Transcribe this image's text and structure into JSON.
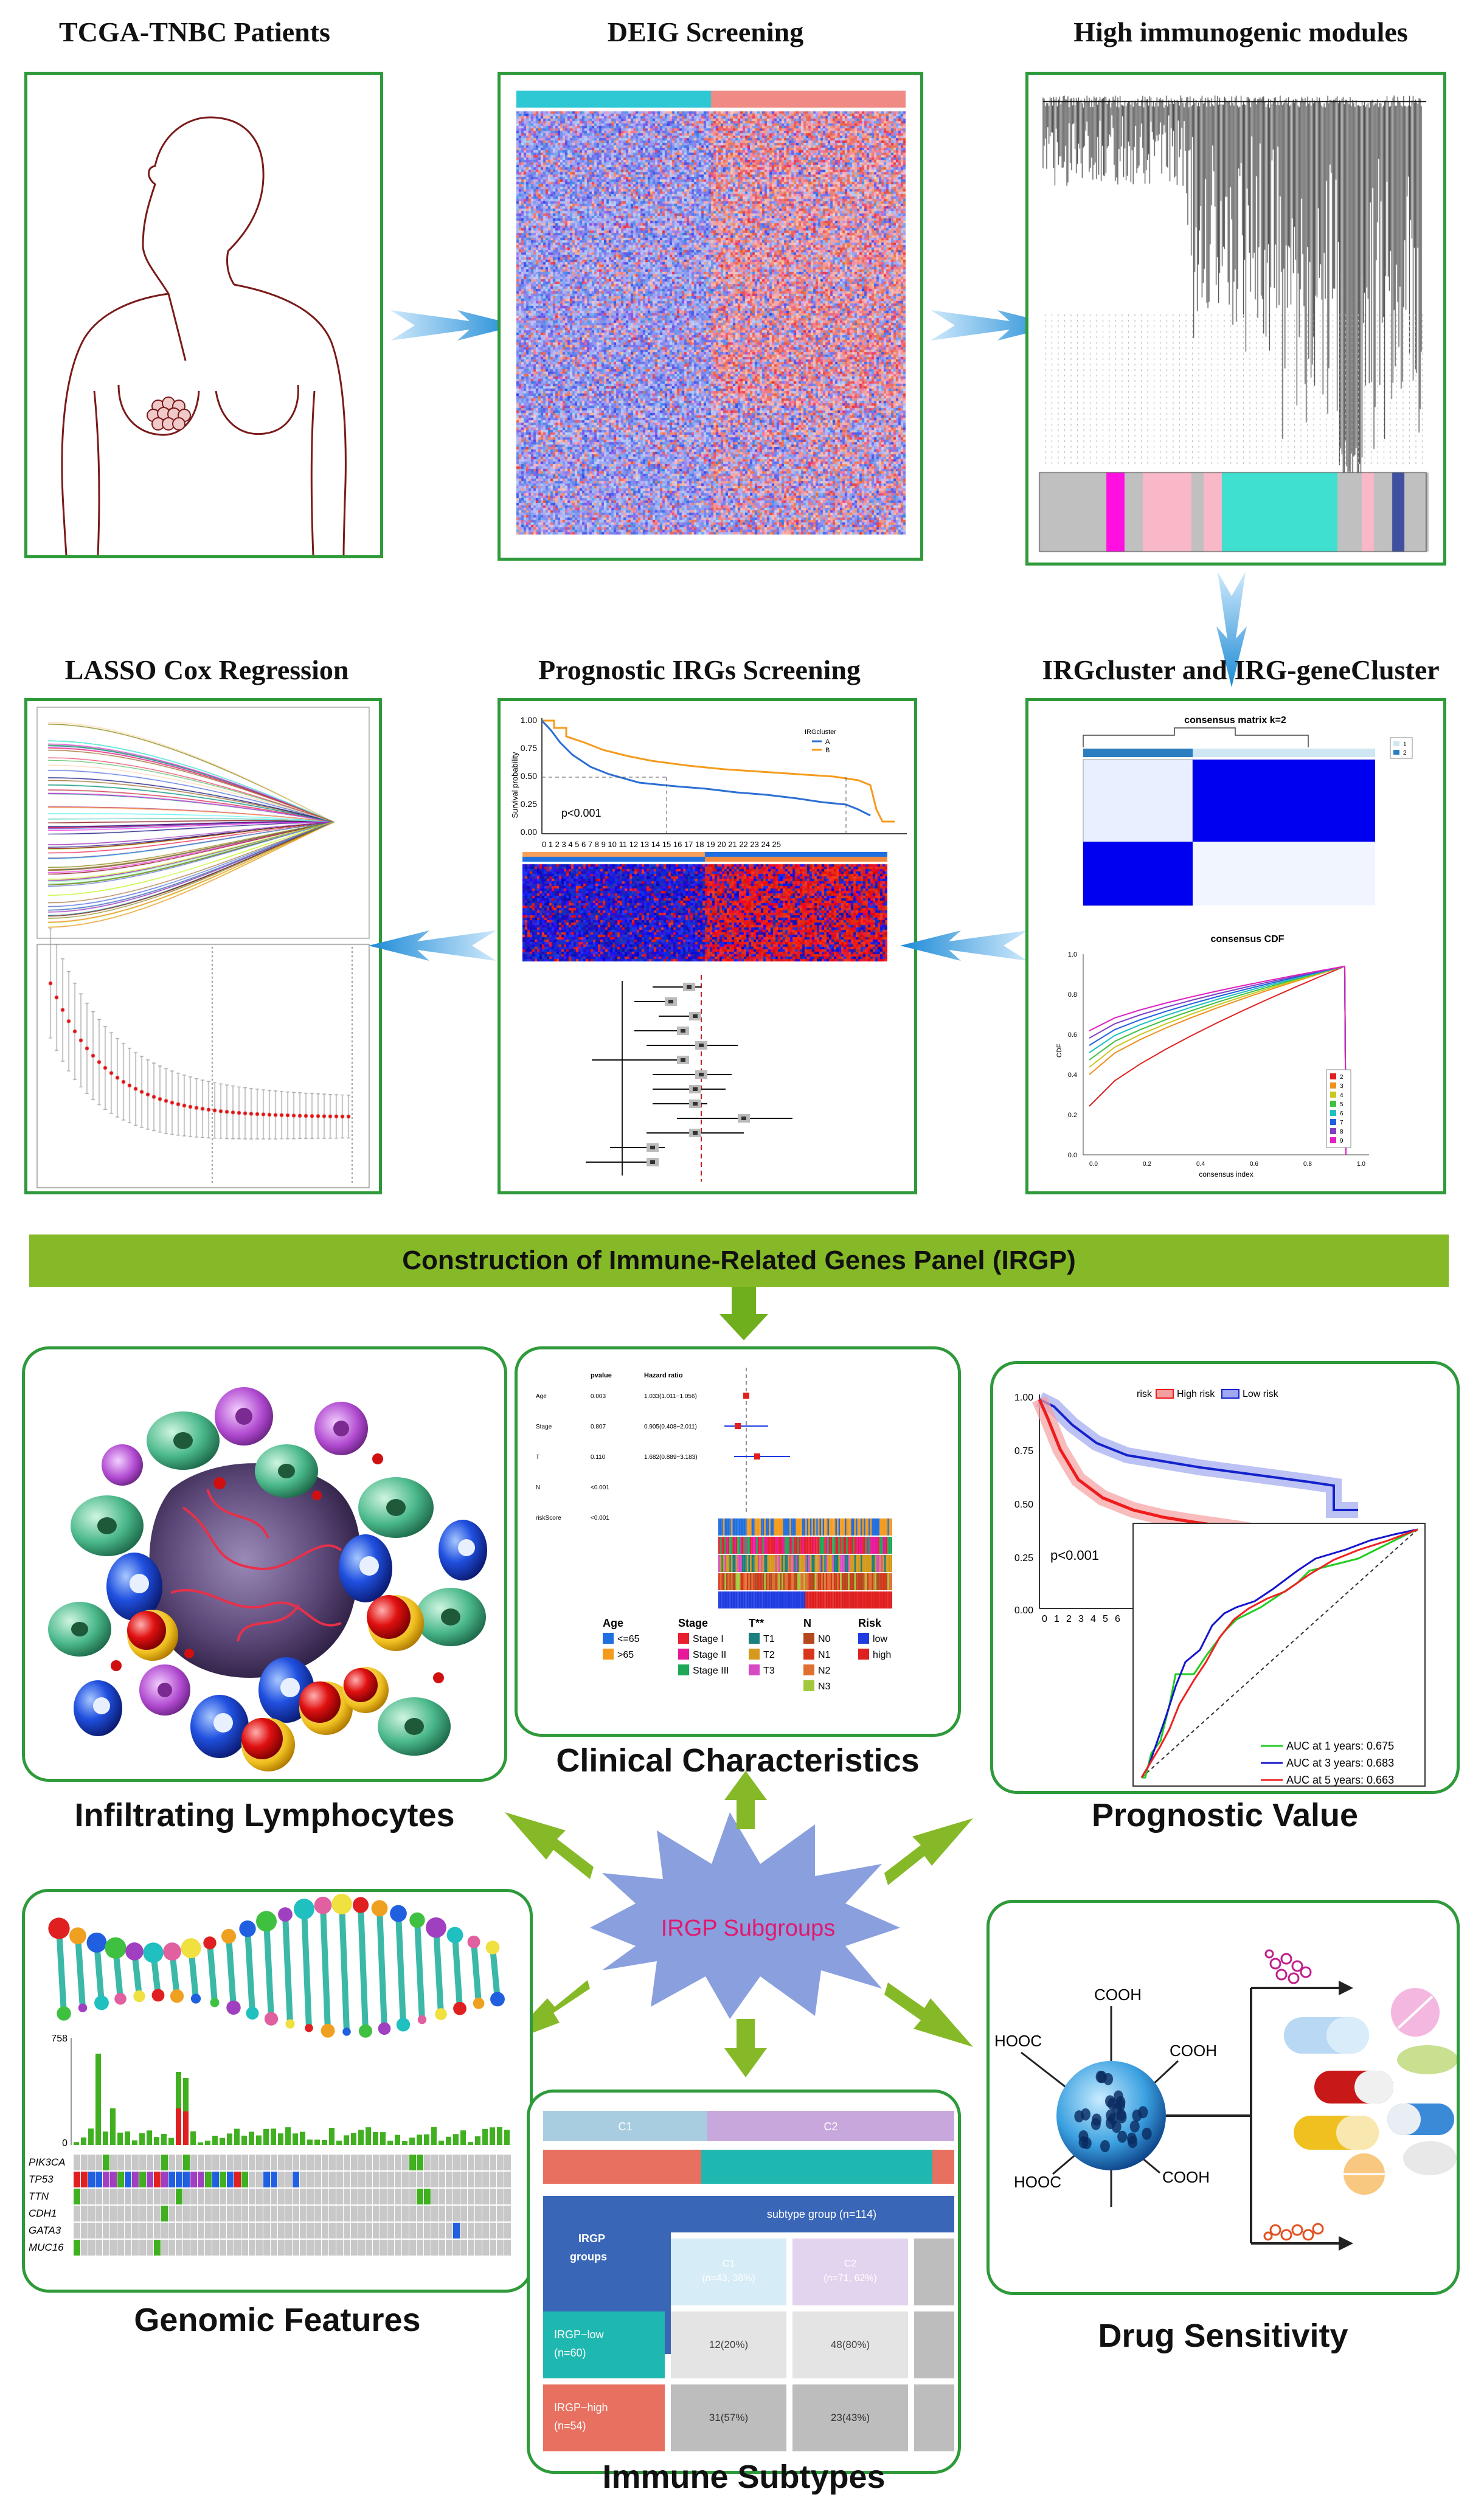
{
  "stages": {
    "tcga": "TCGA-TNBC Patients",
    "deig": "DEIG Screening",
    "modules": "High immunogenic modules",
    "lasso": "LASSO Cox Regression",
    "prognostic_irgs": "Prognostic IRGs Screening",
    "irgcluster": "IRGcluster and IRG-geneCluster"
  },
  "banner": "Construction of Immune-Related Genes Panel (IRGP)",
  "outcomes": {
    "infiltrating": "Infiltrating Lymphocytes",
    "clinical": "Clinical Characteristics",
    "prognostic": "Prognostic Value",
    "genomic": "Genomic Features",
    "immune": "Immune Subtypes",
    "drug": "Drug Sensitivity",
    "center": "IRGP Subgroups"
  },
  "km_small": {
    "pvalue": "p<0.001",
    "ylabel": "Survival probability",
    "legend_title": "IRGcluster",
    "legend_items": [
      "A",
      "B"
    ],
    "yticks": [
      "1.00",
      "0.75",
      "0.50",
      "0.25",
      "0.00"
    ],
    "xticks": "0 1 2 3 4 5 6 7 8 9 10 11 12 13 14 15 16 17 18 19 20 21 22 23 24 25"
  },
  "consensus": {
    "matrix_title": "consensus matrix k=2",
    "legend": [
      "1",
      "2"
    ],
    "cdf_title": "consensus CDF",
    "cdf_xlabel": "consensus index",
    "cdf_ylabel": "CDF",
    "cdf_yticks": [
      "1.0",
      "0.8",
      "0.6",
      "0.4",
      "0.2",
      "0.0"
    ],
    "cdf_xticks": [
      "0.0",
      "0.2",
      "0.4",
      "0.6",
      "0.8",
      "1.0"
    ],
    "cdf_legend": [
      "2",
      "3",
      "4",
      "5",
      "6",
      "7",
      "8",
      "9"
    ],
    "colors": {
      "c1": "#ffffff",
      "c2": "#0000ff"
    }
  },
  "clinical_table": {
    "headers": {
      "pvalue": "pvalue",
      "hr": "Hazard ratio"
    },
    "rows": [
      {
        "name": "Age",
        "p": "0.003",
        "hr": "1.033(1.011−1.056)"
      },
      {
        "name": "Stage",
        "p": "0.807",
        "hr": "0.905(0.408−2.011)"
      },
      {
        "name": "T",
        "p": "0.110",
        "hr": "1.682(0.889−3.183)"
      },
      {
        "name": "N",
        "p": "<0.001",
        "hr": ""
      },
      {
        "name": "riskScore",
        "p": "<0.001",
        "hr": ""
      }
    ],
    "legend": {
      "age": {
        "title": "Age",
        "items": [
          {
            "label": "<=65",
            "color": "#1f6fe0"
          },
          {
            "label": ">65",
            "color": "#f59b1c"
          }
        ]
      },
      "stage": {
        "title": "Stage",
        "items": [
          {
            "label": "Stage I",
            "color": "#e81f2e"
          },
          {
            "label": "Stage II",
            "color": "#e8189a"
          },
          {
            "label": "Stage III",
            "color": "#1ea858"
          }
        ]
      },
      "t": {
        "title": "T**",
        "items": [
          {
            "label": "T1",
            "color": "#1a7f7f"
          },
          {
            "label": "T2",
            "color": "#d59a1c"
          },
          {
            "label": "T3",
            "color": "#d64ac4"
          }
        ]
      },
      "n": {
        "title": "N",
        "items": [
          {
            "label": "N0",
            "color": "#b5471e"
          },
          {
            "label": "N1",
            "color": "#d8351c"
          },
          {
            "label": "N2",
            "color": "#e07030"
          },
          {
            "label": "N3",
            "color": "#a3c83c"
          }
        ]
      },
      "risk": {
        "title": "Risk",
        "items": [
          {
            "label": "low",
            "color": "#1f3ce0"
          },
          {
            "label": "high",
            "color": "#e01f1f"
          }
        ]
      }
    }
  },
  "prognostic": {
    "legend_title": "risk",
    "high": "High risk",
    "low": "Low risk",
    "pvalue": "p<0.001",
    "yticks": [
      "1.00",
      "0.75",
      "0.50",
      "0.25",
      "0.00"
    ],
    "xticks": [
      "0",
      "1",
      "2",
      "3",
      "4",
      "5",
      "6"
    ],
    "auc": [
      "AUC at 1 years: 0.675",
      "AUC at 3 years: 0.683",
      "AUC at 5 years: 0.663"
    ],
    "colors": {
      "high": "#ee1c1c",
      "low": "#1422cc",
      "auc1": "#22cc22",
      "auc3": "#1414cc",
      "auc5": "#ee2222"
    }
  },
  "genomic": {
    "ymax": "758",
    "ymin": "0",
    "genes": [
      "PIK3CA",
      "TP53",
      "TTN",
      "CDH1",
      "GATA3",
      "MUC16"
    ]
  },
  "immune": {
    "c1": "C1",
    "c2": "C2",
    "irgp_groups": "IRGP\ngroups",
    "subtype_group": "subtype group (n=114)",
    "sub_c1": "C1",
    "sub_c1_n": "(n=43, 38%)",
    "sub_c2": "C2",
    "sub_c2_n": "(n=71, 62%)",
    "low": "IRGP−low",
    "low_n": "(n=60)",
    "high": "IRGP−high",
    "high_n": "(n=54)",
    "low_c1": "12(20%)",
    "low_c2": "48(80%)",
    "high_c1": "31(57%)",
    "high_c2": "23(43%)"
  },
  "drug": {
    "labels": [
      "COOH",
      "HOOC",
      "COOH",
      "HOOC",
      "COOH"
    ]
  }
}
